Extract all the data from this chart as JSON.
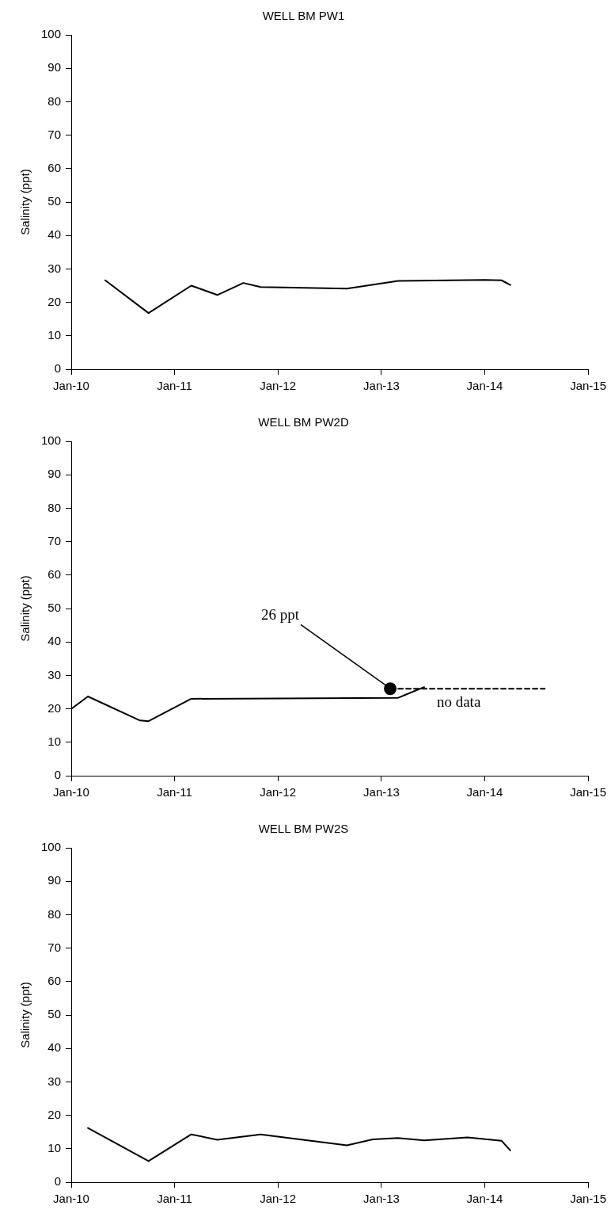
{
  "chart_data": [
    {
      "type": "line",
      "title": "WELL BM PW1",
      "ylabel": "Salinity (ppt)",
      "xlim": [
        "2010-01",
        "2015-01"
      ],
      "xticks": [
        {
          "value": "2010-01",
          "label": "Jan-10"
        },
        {
          "value": "2011-01",
          "label": "Jan-11"
        },
        {
          "value": "2012-01",
          "label": "Jan-12"
        },
        {
          "value": "2013-01",
          "label": "Jan-13"
        },
        {
          "value": "2014-01",
          "label": "Jan-14"
        },
        {
          "value": "2015-01",
          "label": "Jan-15"
        }
      ],
      "ylim": [
        0,
        100
      ],
      "yticks": [
        0,
        10,
        20,
        30,
        40,
        50,
        60,
        70,
        80,
        90,
        100
      ],
      "grid": false,
      "legend": false,
      "marker": "none",
      "line_style": "solid",
      "series": [
        {
          "color": "#000000",
          "x": [
            "2010-05",
            "2010-10",
            "2011-03",
            "2011-06",
            "2011-09",
            "2011-11",
            "2012-09",
            "2013-03",
            "2014-01",
            "2014-03",
            "2014-04"
          ],
          "values": [
            26.6,
            16.8,
            25.0,
            22.2,
            25.8,
            24.6,
            24.1,
            26.4,
            26.7,
            26.6,
            25.2
          ]
        }
      ]
    },
    {
      "type": "line",
      "title": "WELL BM PW2D",
      "ylabel": "Salinity (ppt)",
      "xlim": [
        "2010-01",
        "2015-01"
      ],
      "xticks": [
        {
          "value": "2010-01",
          "label": "Jan-10"
        },
        {
          "value": "2011-01",
          "label": "Jan-11"
        },
        {
          "value": "2012-01",
          "label": "Jan-12"
        },
        {
          "value": "2013-01",
          "label": "Jan-13"
        },
        {
          "value": "2014-01",
          "label": "Jan-14"
        },
        {
          "value": "2015-01",
          "label": "Jan-15"
        }
      ],
      "ylim": [
        0,
        100
      ],
      "yticks": [
        0,
        10,
        20,
        30,
        40,
        50,
        60,
        70,
        80,
        90,
        100
      ],
      "grid": false,
      "legend": false,
      "marker": "none",
      "line_style": "solid",
      "series": [
        {
          "color": "#000000",
          "x": [
            "2010-01",
            "2010-03",
            "2010-09",
            "2010-10",
            "2011-03",
            "2013-03",
            "2013-06"
          ],
          "values": [
            20,
            23.7,
            16.5,
            16.3,
            23,
            23.3,
            26.5
          ]
        },
        {
          "color": "#000000",
          "line_style": "dashed",
          "x": [
            "2013-02",
            "2014-08"
          ],
          "values": [
            26,
            26
          ]
        },
        {
          "type": "scatter",
          "color": "#000000",
          "marker": "circle",
          "x": [
            "2013-02"
          ],
          "values": [
            26
          ]
        }
      ],
      "annotations": [
        {
          "text": "26 ppt",
          "x": "2013-02",
          "y": 26
        },
        {
          "text": "no data",
          "x": "2013-10",
          "y": 26
        }
      ]
    },
    {
      "type": "line",
      "title": "WELL BM PW2S",
      "ylabel": "Salinity (ppt)",
      "xlim": [
        "2010-01",
        "2015-01"
      ],
      "xticks": [
        {
          "value": "2010-01",
          "label": "Jan-10"
        },
        {
          "value": "2011-01",
          "label": "Jan-11"
        },
        {
          "value": "2012-01",
          "label": "Jan-12"
        },
        {
          "value": "2013-01",
          "label": "Jan-13"
        },
        {
          "value": "2014-01",
          "label": "Jan-14"
        },
        {
          "value": "2015-01",
          "label": "Jan-15"
        }
      ],
      "ylim": [
        0,
        100
      ],
      "yticks": [
        0,
        10,
        20,
        30,
        40,
        50,
        60,
        70,
        80,
        90,
        100
      ],
      "grid": false,
      "legend": false,
      "marker": "none",
      "line_style": "solid",
      "series": [
        {
          "color": "#000000",
          "x": [
            "2010-03",
            "2010-10",
            "2011-03",
            "2011-06",
            "2011-11",
            "2012-09",
            "2012-12",
            "2013-03",
            "2013-06",
            "2013-11",
            "2014-03",
            "2014-04"
          ],
          "values": [
            16.2,
            6.3,
            14.3,
            12.7,
            14.3,
            11.0,
            12.8,
            13.2,
            12.5,
            13.4,
            12.4,
            9.5
          ]
        }
      ]
    }
  ]
}
